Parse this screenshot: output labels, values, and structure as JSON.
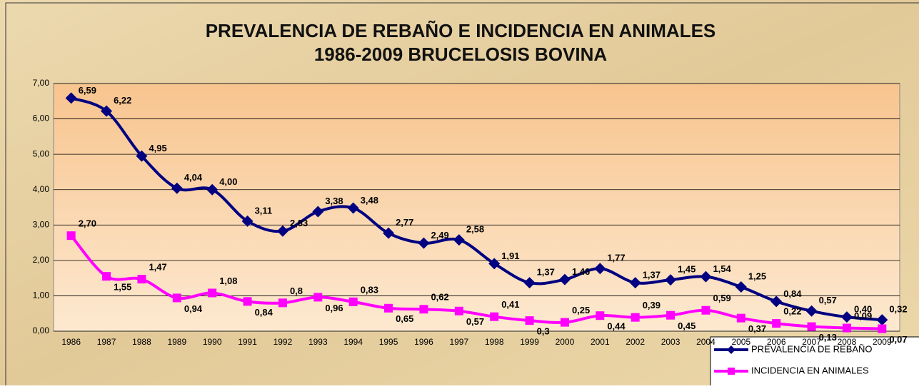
{
  "chart_data": {
    "type": "line",
    "title": "PREVALENCIA DE REBAÑO E INCIDENCIA EN ANIMALES",
    "subtitle": "1986-2009 BRUCELOSIS BOVINA",
    "categories": [
      "1986",
      "1987",
      "1988",
      "1989",
      "1990",
      "1991",
      "1992",
      "1993",
      "1994",
      "1995",
      "1996",
      "1997",
      "1998",
      "1999",
      "2000",
      "2001",
      "2002",
      "2003",
      "2004",
      "2005",
      "2006",
      "2007",
      "2008",
      "2009"
    ],
    "series": [
      {
        "name": "PREVALENCIA DE REBAÑO",
        "color": "#000080",
        "marker": "diamond",
        "values": [
          6.59,
          6.22,
          4.95,
          4.04,
          4.0,
          3.11,
          2.83,
          3.38,
          3.48,
          2.77,
          2.49,
          2.58,
          1.91,
          1.37,
          1.46,
          1.77,
          1.37,
          1.45,
          1.54,
          1.25,
          0.84,
          0.57,
          0.4,
          0.32
        ],
        "value_labels": [
          "6,59",
          "6,22",
          "4,95",
          "4,04",
          "4,00",
          "3,11",
          "2,83",
          "3,38",
          "3,48",
          "2,77",
          "2,49",
          "2,58",
          "1,91",
          "1,37",
          "1,46",
          "1,77",
          "1,37",
          "1,45",
          "1,54",
          "1,25",
          "0,84",
          "0,57",
          "0,40",
          "0,32"
        ]
      },
      {
        "name": "INCIDENCIA EN ANIMALES",
        "color": "#ff00ff",
        "marker": "square",
        "values": [
          2.7,
          1.55,
          1.47,
          0.94,
          1.08,
          0.84,
          0.8,
          0.96,
          0.83,
          0.65,
          0.62,
          0.57,
          0.41,
          0.3,
          0.25,
          0.44,
          0.39,
          0.45,
          0.59,
          0.37,
          0.22,
          0.13,
          0.09,
          0.07
        ],
        "value_labels": [
          "2,70",
          "1,55",
          "1,47",
          "0,94",
          "1,08",
          "0,84",
          "0,8",
          "0,96",
          "0,83",
          "0,65",
          "0,62",
          "0,57",
          "0,41",
          "0,3",
          "0,25",
          "0,44",
          "0,39",
          "0,45",
          "0,59",
          "0,37",
          "0,22",
          "0,13",
          "0,09",
          "0,07"
        ]
      }
    ],
    "ylim": [
      0,
      7
    ],
    "yticks": [
      {
        "value": 0,
        "label": "0,00"
      },
      {
        "value": 1,
        "label": "1,00"
      },
      {
        "value": 2,
        "label": "2,00"
      },
      {
        "value": 3,
        "label": "3,00"
      },
      {
        "value": 4,
        "label": "4,00"
      },
      {
        "value": 5,
        "label": "5,00"
      },
      {
        "value": 6,
        "label": "6,00"
      },
      {
        "value": 7,
        "label": "7,00"
      }
    ],
    "grid": true,
    "legend": "bottom-right"
  }
}
